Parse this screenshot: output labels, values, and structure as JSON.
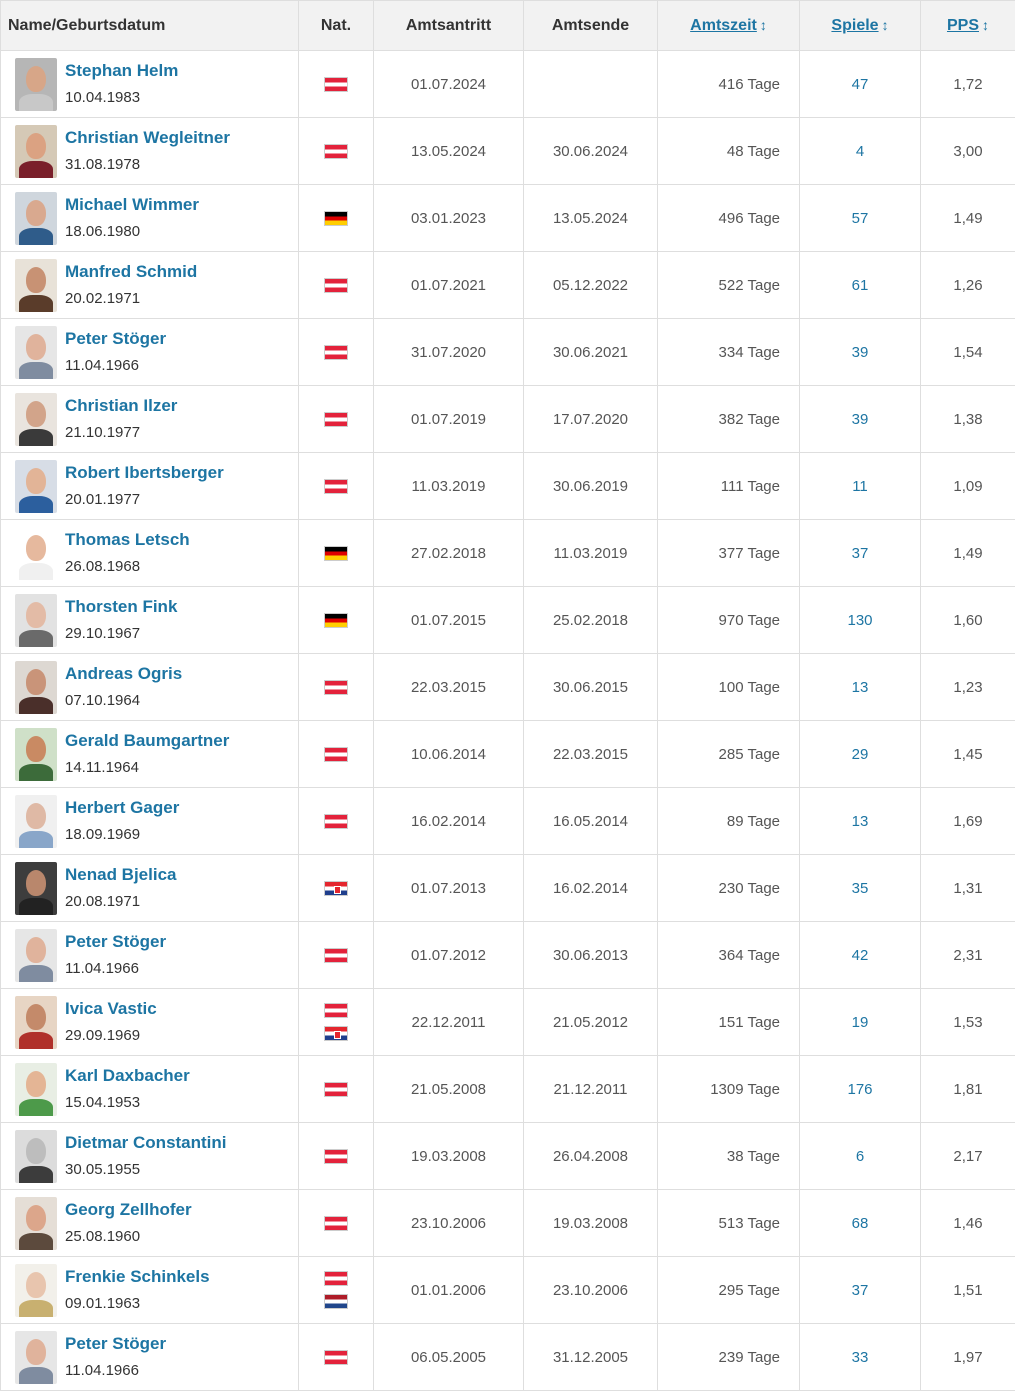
{
  "headers": {
    "name": "Name/Geburtsdatum",
    "nat": "Nat.",
    "start": "Amtsantritt",
    "end": "Amtsende",
    "tenure": "Amtszeit",
    "games": "Spiele",
    "pps": "PPS",
    "sort_icon": "↕"
  },
  "colors": {
    "link": "#1d75a3",
    "header_bg": "#f2f2f2",
    "border": "#dedede"
  },
  "rows": [
    {
      "name": "Stephan Helm",
      "dob": "10.04.1983",
      "flags": [
        "at"
      ],
      "start": "01.07.2024",
      "end": "",
      "tenure": "416 Tage",
      "games": "47",
      "pps": "1,72",
      "skin": "#d7a688",
      "shirt": "#c8c8c8",
      "bg": "#b6b6b6"
    },
    {
      "name": "Christian Wegleitner",
      "dob": "31.08.1978",
      "flags": [
        "at"
      ],
      "start": "13.05.2024",
      "end": "30.06.2024",
      "tenure": "48 Tage",
      "games": "4",
      "pps": "3,00",
      "skin": "#dba282",
      "shirt": "#7a1f2a",
      "bg": "#d5c9b6"
    },
    {
      "name": "Michael Wimmer",
      "dob": "18.06.1980",
      "flags": [
        "de"
      ],
      "start": "03.01.2023",
      "end": "13.05.2024",
      "tenure": "496 Tage",
      "games": "57",
      "pps": "1,49",
      "skin": "#d9a98f",
      "shirt": "#2f5c8a",
      "bg": "#cfd6dd"
    },
    {
      "name": "Manfred Schmid",
      "dob": "20.02.1971",
      "flags": [
        "at"
      ],
      "start": "01.07.2021",
      "end": "05.12.2022",
      "tenure": "522 Tage",
      "games": "61",
      "pps": "1,26",
      "skin": "#c89274",
      "shirt": "#5a3c2a",
      "bg": "#e8e2d8"
    },
    {
      "name": "Peter Stöger",
      "dob": "11.04.1966",
      "flags": [
        "at"
      ],
      "start": "31.07.2020",
      "end": "30.06.2021",
      "tenure": "334 Tage",
      "games": "39",
      "pps": "1,54",
      "skin": "#e0b39c",
      "shirt": "#7f8ca0",
      "bg": "#e6e6e6"
    },
    {
      "name": "Christian Ilzer",
      "dob": "21.10.1977",
      "flags": [
        "at"
      ],
      "start": "01.07.2019",
      "end": "17.07.2020",
      "tenure": "382 Tage",
      "games": "39",
      "pps": "1,38",
      "skin": "#d2a48a",
      "shirt": "#3a3a3a",
      "bg": "#e9e4de"
    },
    {
      "name": "Robert Ibertsberger",
      "dob": "20.01.1977",
      "flags": [
        "at"
      ],
      "start": "11.03.2019",
      "end": "30.06.2019",
      "tenure": "111 Tage",
      "games": "11",
      "pps": "1,09",
      "skin": "#e2b497",
      "shirt": "#2c5f9e",
      "bg": "#d7dde6"
    },
    {
      "name": "Thomas Letsch",
      "dob": "26.08.1968",
      "flags": [
        "de"
      ],
      "start": "27.02.2018",
      "end": "11.03.2019",
      "tenure": "377 Tage",
      "games": "37",
      "pps": "1,49",
      "skin": "#e6b99e",
      "shirt": "#f0f0f0",
      "bg": "#ffffff"
    },
    {
      "name": "Thorsten Fink",
      "dob": "29.10.1967",
      "flags": [
        "de"
      ],
      "start": "01.07.2015",
      "end": "25.02.2018",
      "tenure": "970 Tage",
      "games": "130",
      "pps": "1,60",
      "skin": "#e3bba6",
      "shirt": "#6a6a6a",
      "bg": "#e2e2e2"
    },
    {
      "name": "Andreas Ogris",
      "dob": "07.10.1964",
      "flags": [
        "at"
      ],
      "start": "22.03.2015",
      "end": "30.06.2015",
      "tenure": "100 Tage",
      "games": "13",
      "pps": "1,23",
      "skin": "#c99479",
      "shirt": "#4a2f2a",
      "bg": "#ddd8d2"
    },
    {
      "name": "Gerald Baumgartner",
      "dob": "14.11.1964",
      "flags": [
        "at"
      ],
      "start": "10.06.2014",
      "end": "22.03.2015",
      "tenure": "285 Tage",
      "games": "29",
      "pps": "1,45",
      "skin": "#c98a63",
      "shirt": "#3c6b3a",
      "bg": "#cfe0c8"
    },
    {
      "name": "Herbert Gager",
      "dob": "18.09.1969",
      "flags": [
        "at"
      ],
      "start": "16.02.2014",
      "end": "16.05.2014",
      "tenure": "89 Tage",
      "games": "13",
      "pps": "1,69",
      "skin": "#dfb9a5",
      "shirt": "#89a6c9",
      "bg": "#f0f0f0"
    },
    {
      "name": "Nenad Bjelica",
      "dob": "20.08.1971",
      "flags": [
        "hr"
      ],
      "start": "01.07.2013",
      "end": "16.02.2014",
      "tenure": "230 Tage",
      "games": "35",
      "pps": "1,31",
      "skin": "#b9876c",
      "shirt": "#222222",
      "bg": "#3d3d3d"
    },
    {
      "name": "Peter Stöger",
      "dob": "11.04.1966",
      "flags": [
        "at"
      ],
      "start": "01.07.2012",
      "end": "30.06.2013",
      "tenure": "364 Tage",
      "games": "42",
      "pps": "2,31",
      "skin": "#e0b39c",
      "shirt": "#7f8ca0",
      "bg": "#e6e6e6"
    },
    {
      "name": "Ivica Vastic",
      "dob": "29.09.1969",
      "flags": [
        "at",
        "hr"
      ],
      "start": "22.12.2011",
      "end": "21.05.2012",
      "tenure": "151 Tage",
      "games": "19",
      "pps": "1,53",
      "skin": "#c48a6a",
      "shirt": "#b0302a",
      "bg": "#e7d5c4"
    },
    {
      "name": "Karl Daxbacher",
      "dob": "15.04.1953",
      "flags": [
        "at"
      ],
      "start": "21.05.2008",
      "end": "21.12.2011",
      "tenure": "1309 Tage",
      "games": "176",
      "pps": "1,81",
      "skin": "#e4b595",
      "shirt": "#4d9a4a",
      "bg": "#e8eee4"
    },
    {
      "name": "Dietmar Constantini",
      "dob": "30.05.1955",
      "flags": [
        "at"
      ],
      "start": "19.03.2008",
      "end": "26.04.2008",
      "tenure": "38 Tage",
      "games": "6",
      "pps": "2,17",
      "skin": "#bdbdbd",
      "shirt": "#3c3c3c",
      "bg": "#dcdcdc"
    },
    {
      "name": "Georg Zellhofer",
      "dob": "25.08.1960",
      "flags": [
        "at"
      ],
      "start": "23.10.2006",
      "end": "19.03.2008",
      "tenure": "513 Tage",
      "games": "68",
      "pps": "1,46",
      "skin": "#dca68b",
      "shirt": "#5c4a3d",
      "bg": "#e5ded6"
    },
    {
      "name": "Frenkie Schinkels",
      "dob": "09.01.1963",
      "flags": [
        "at",
        "nl"
      ],
      "start": "01.01.2006",
      "end": "23.10.2006",
      "tenure": "295 Tage",
      "games": "37",
      "pps": "1,51",
      "skin": "#e8c5ae",
      "shirt": "#c8b070",
      "bg": "#f2f0ea"
    },
    {
      "name": "Peter Stöger",
      "dob": "11.04.1966",
      "flags": [
        "at"
      ],
      "start": "06.05.2005",
      "end": "31.12.2005",
      "tenure": "239 Tage",
      "games": "33",
      "pps": "1,97",
      "skin": "#e0b39c",
      "shirt": "#7f8ca0",
      "bg": "#e6e6e6"
    }
  ]
}
